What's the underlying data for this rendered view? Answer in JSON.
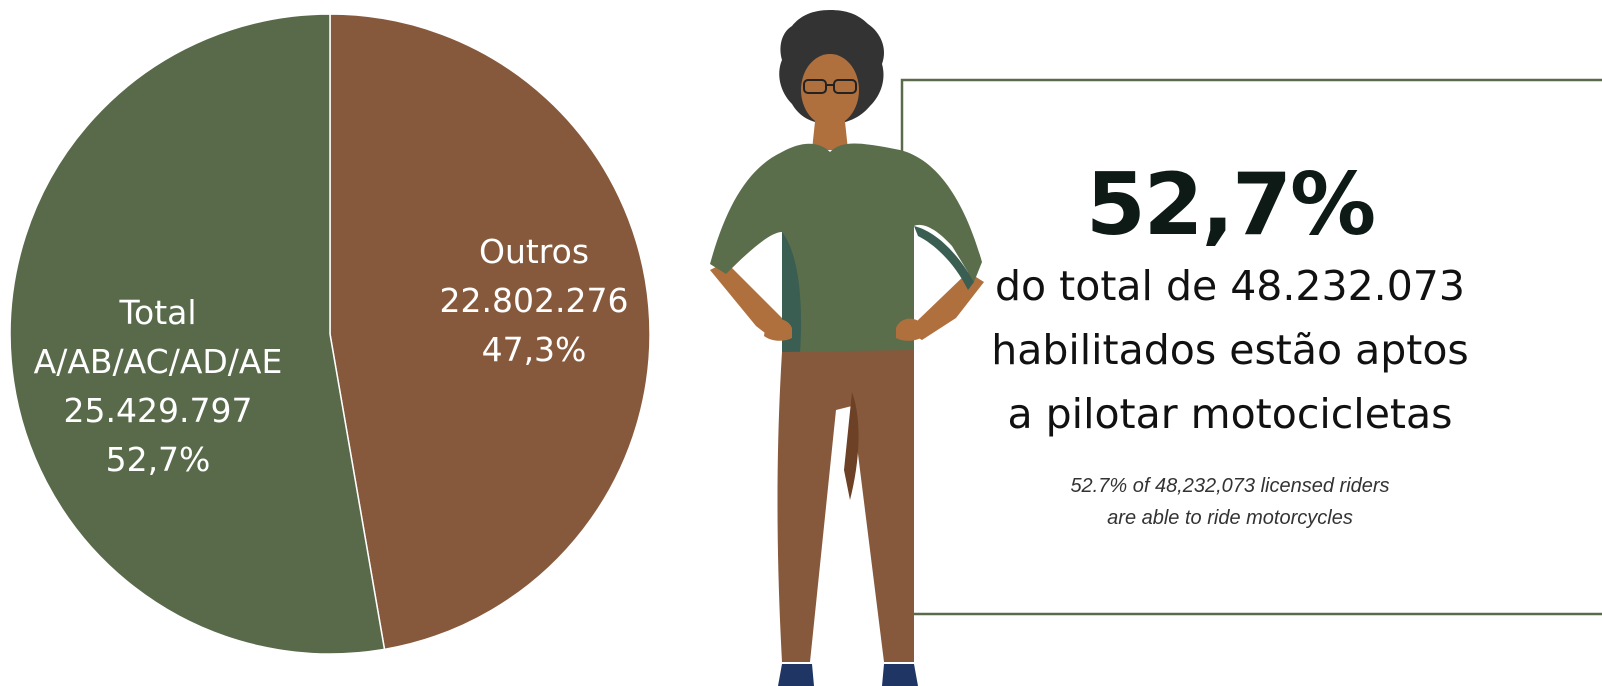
{
  "chart_data": {
    "type": "pie",
    "slices": [
      {
        "id": "outros",
        "lines": [
          "Outros",
          "22.802.276",
          "47,3%"
        ],
        "value": 22802276,
        "percent": 47.3,
        "color": "#87593c"
      },
      {
        "id": "total",
        "lines": [
          "Total",
          "A/AB/AC/AD/AE",
          "25.429.797",
          "52,7%"
        ],
        "value": 25429797,
        "percent": 52.7,
        "color": "#596a4b"
      }
    ]
  },
  "highlight": {
    "percent": "52,7%",
    "statement_lines": [
      "do total de 48.232.073",
      "habilitados estão aptos",
      "a pilotar motocicletas"
    ],
    "caption_lines": [
      "52.7% of 48,232,073 licensed riders",
      "are able to ride motorcycles"
    ]
  },
  "colors": {
    "frame": "#5a6b4d",
    "skin": "#b0703e",
    "hair": "#333333",
    "shirt": "#5b6e4c",
    "shirt_shadow": "#3a5e51",
    "pants": "#87593c",
    "pants_shadow": "#6c4126",
    "shoes": "#1f3564"
  }
}
